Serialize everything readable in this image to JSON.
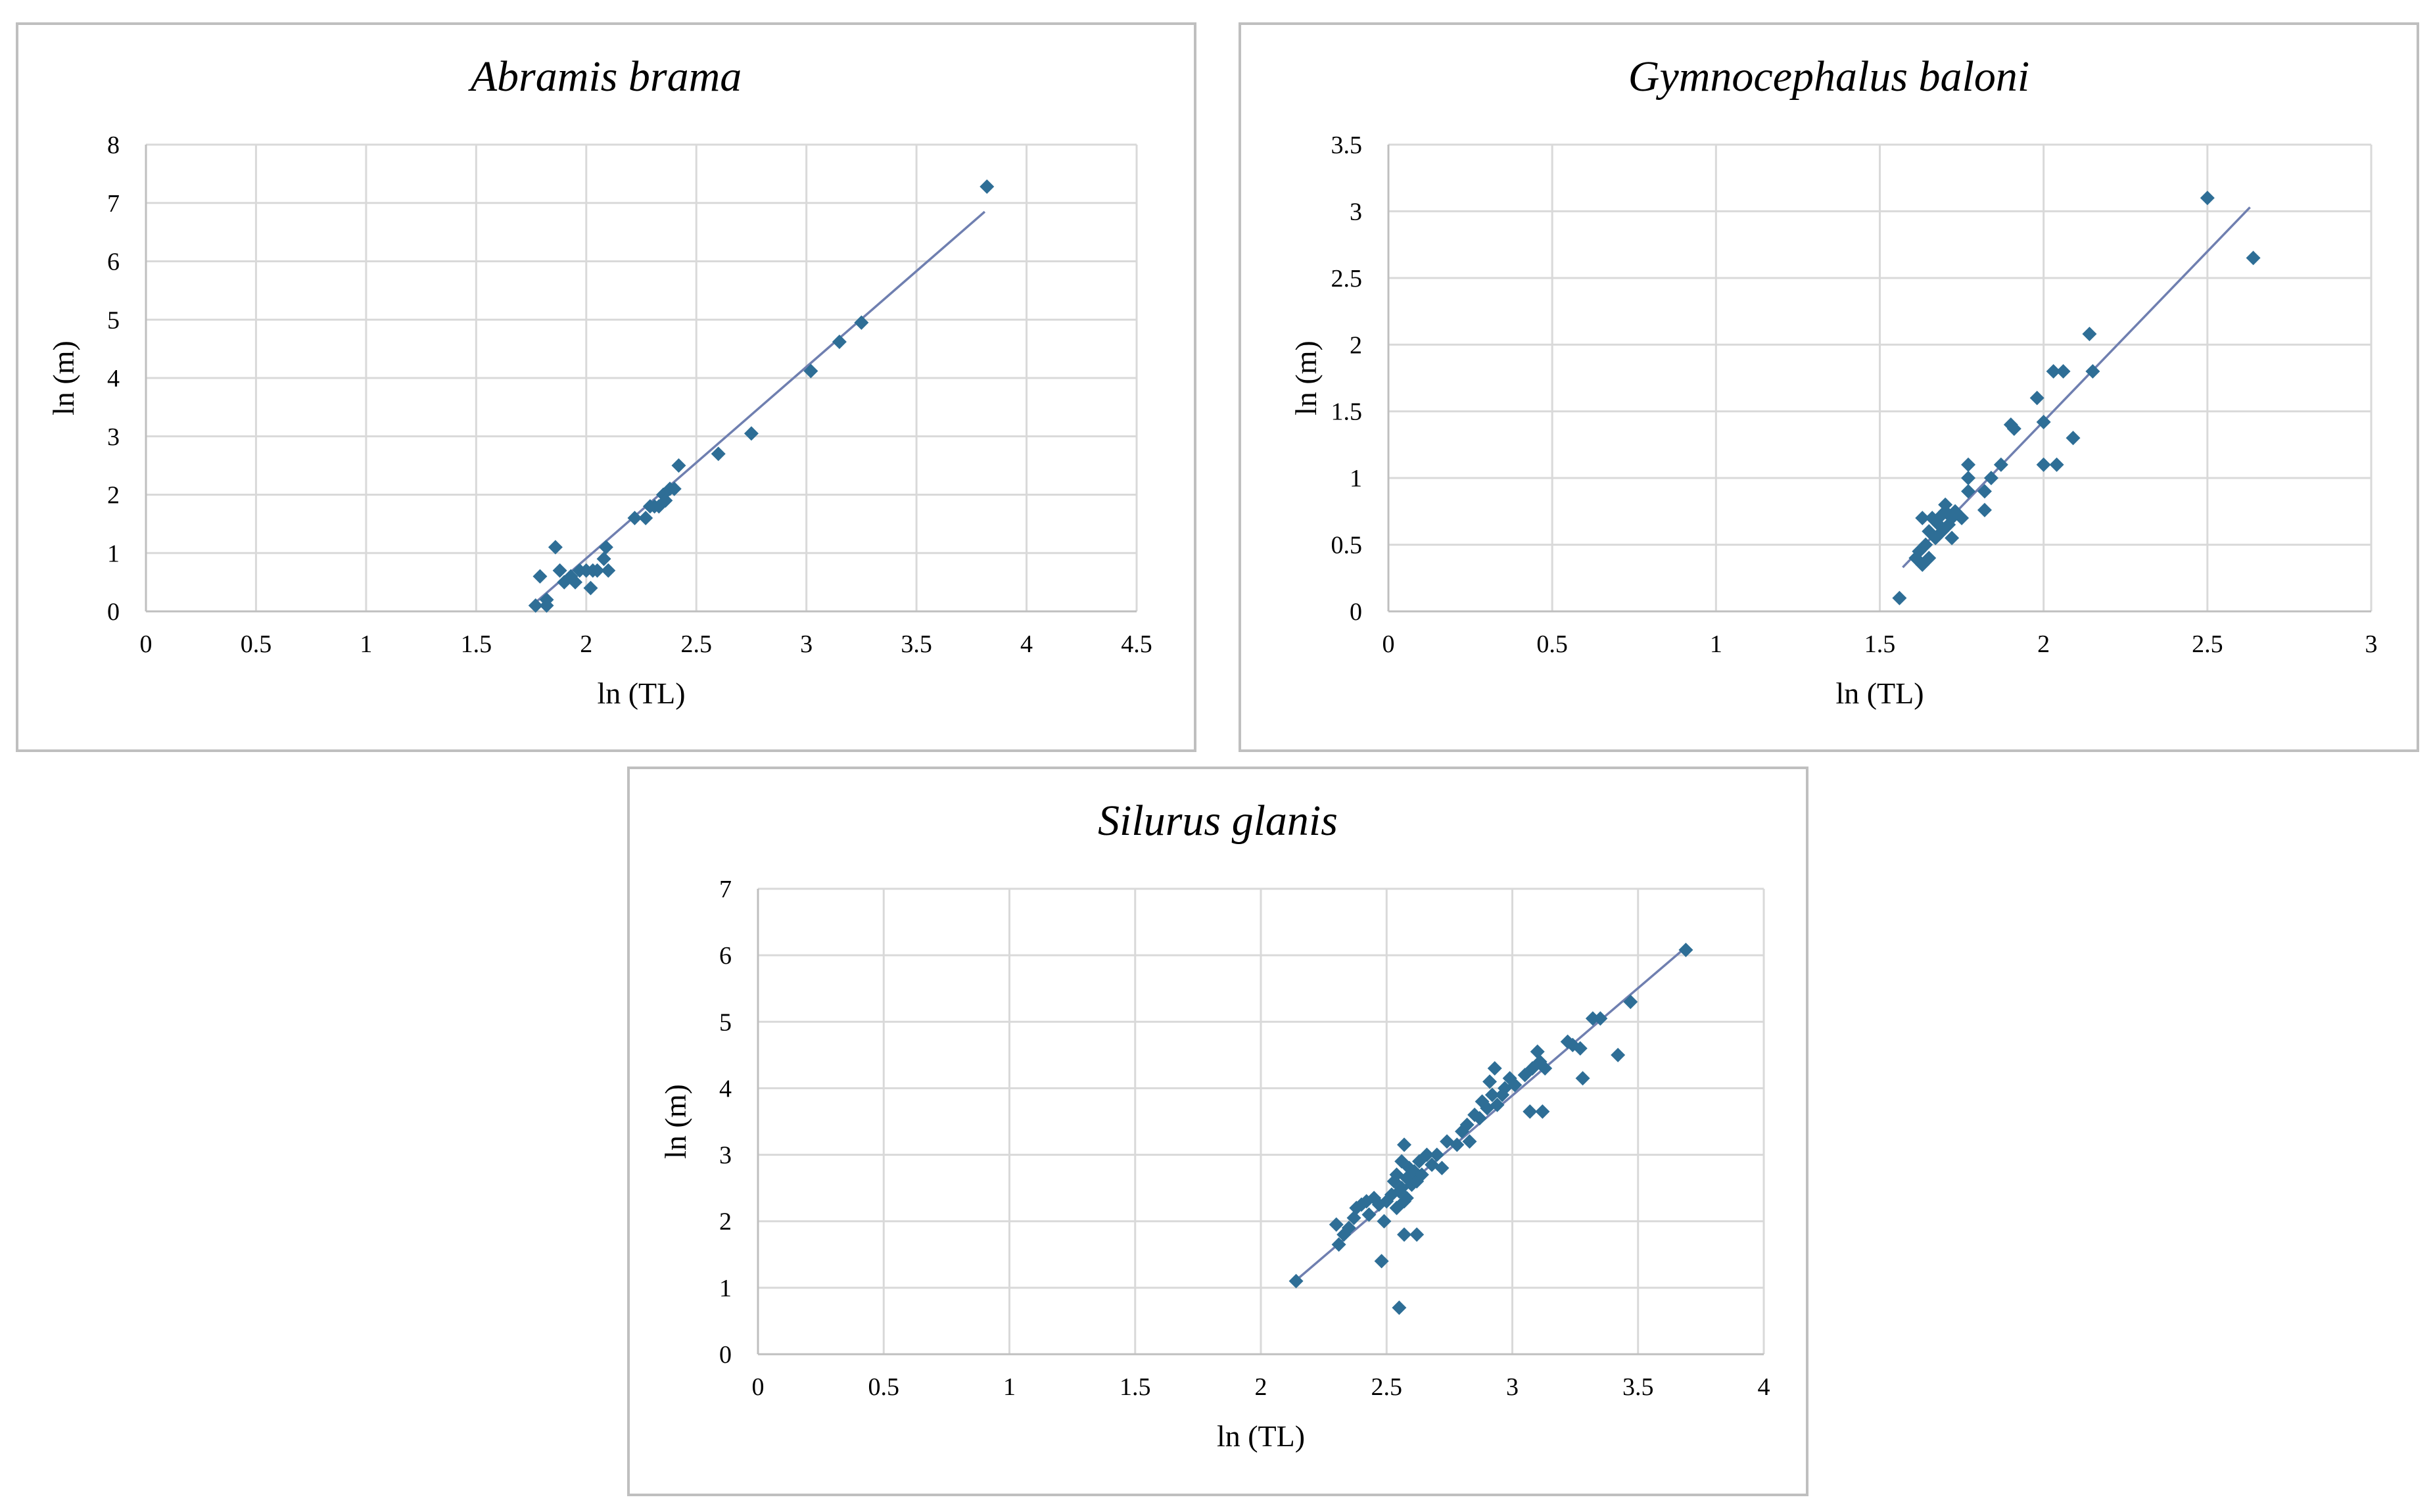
{
  "chart_data": [
    {
      "type": "scatter",
      "title": "Abramis brama",
      "xlabel": "ln (TL)",
      "ylabel": "ln (m)",
      "xlim": [
        0,
        4.5
      ],
      "ylim": [
        0,
        8
      ],
      "x_ticks": [
        "0",
        "0.5",
        "1",
        "1.5",
        "2",
        "2.5",
        "3",
        "3.5",
        "4",
        "4.5"
      ],
      "y_ticks": [
        "0",
        "1",
        "2",
        "3",
        "4",
        "5",
        "6",
        "7",
        "8"
      ],
      "grid": true,
      "legend": "none",
      "point_color": "#2e6e96",
      "trendline_color": "#6f7fb0",
      "trendline": [
        [
          1.76,
          0.12
        ],
        [
          3.81,
          6.85
        ]
      ],
      "points": [
        [
          1.77,
          0.1
        ],
        [
          1.79,
          0.6
        ],
        [
          1.82,
          0.2
        ],
        [
          1.82,
          0.1
        ],
        [
          1.86,
          1.1
        ],
        [
          1.88,
          0.7
        ],
        [
          1.9,
          0.5
        ],
        [
          1.93,
          0.6
        ],
        [
          1.95,
          0.5
        ],
        [
          1.97,
          0.7
        ],
        [
          2.0,
          0.7
        ],
        [
          2.02,
          0.4
        ],
        [
          2.03,
          0.7
        ],
        [
          2.05,
          0.7
        ],
        [
          2.08,
          0.9
        ],
        [
          2.09,
          1.1
        ],
        [
          2.1,
          0.7
        ],
        [
          2.22,
          1.6
        ],
        [
          2.27,
          1.6
        ],
        [
          2.29,
          1.8
        ],
        [
          2.31,
          1.8
        ],
        [
          2.33,
          1.8
        ],
        [
          2.35,
          2.0
        ],
        [
          2.36,
          1.9
        ],
        [
          2.38,
          2.1
        ],
        [
          2.4,
          2.1
        ],
        [
          2.42,
          2.5
        ],
        [
          2.6,
          2.7
        ],
        [
          2.75,
          3.05
        ],
        [
          3.02,
          4.12
        ],
        [
          3.15,
          4.62
        ],
        [
          3.25,
          4.95
        ],
        [
          3.82,
          7.28
        ]
      ]
    },
    {
      "type": "scatter",
      "title": "Gymnocephalus baloni",
      "xlabel": "ln (TL)",
      "ylabel": "ln (m)",
      "xlim": [
        0,
        3
      ],
      "ylim": [
        0,
        3.5
      ],
      "x_ticks": [
        "0",
        "0.5",
        "1",
        "1.5",
        "2",
        "2.5",
        "3"
      ],
      "y_ticks": [
        "0",
        "0.5",
        "1",
        "1.5",
        "2",
        "2.5",
        "3",
        "3.5"
      ],
      "grid": true,
      "legend": "none",
      "point_color": "#2e6e96",
      "trendline_color": "#6f7fb0",
      "trendline": [
        [
          1.57,
          0.33
        ],
        [
          2.63,
          3.03
        ]
      ],
      "points": [
        [
          1.56,
          0.1
        ],
        [
          1.61,
          0.4
        ],
        [
          1.62,
          0.45
        ],
        [
          1.63,
          0.35
        ],
        [
          1.63,
          0.7
        ],
        [
          1.64,
          0.5
        ],
        [
          1.65,
          0.6
        ],
        [
          1.65,
          0.4
        ],
        [
          1.66,
          0.7
        ],
        [
          1.67,
          0.55
        ],
        [
          1.68,
          0.65
        ],
        [
          1.68,
          0.7
        ],
        [
          1.69,
          0.6
        ],
        [
          1.7,
          0.75
        ],
        [
          1.7,
          0.8
        ],
        [
          1.71,
          0.65
        ],
        [
          1.72,
          0.7
        ],
        [
          1.72,
          0.55
        ],
        [
          1.73,
          0.75
        ],
        [
          1.75,
          0.7
        ],
        [
          1.77,
          0.9
        ],
        [
          1.77,
          1.0
        ],
        [
          1.77,
          1.1
        ],
        [
          1.82,
          0.76
        ],
        [
          1.82,
          0.9
        ],
        [
          1.84,
          1.0
        ],
        [
          1.87,
          1.1
        ],
        [
          1.9,
          1.4
        ],
        [
          1.91,
          1.37
        ],
        [
          1.98,
          1.6
        ],
        [
          2.0,
          1.42
        ],
        [
          2.0,
          1.1
        ],
        [
          2.03,
          1.8
        ],
        [
          2.04,
          1.1
        ],
        [
          2.06,
          1.8
        ],
        [
          2.09,
          1.3
        ],
        [
          2.14,
          2.08
        ],
        [
          2.15,
          1.8
        ],
        [
          2.5,
          3.1
        ],
        [
          2.64,
          2.65
        ]
      ]
    },
    {
      "type": "scatter",
      "title": "Silurus glanis",
      "xlabel": "ln (TL)",
      "ylabel": "ln (m)",
      "xlim": [
        0,
        4
      ],
      "ylim": [
        0,
        7
      ],
      "x_ticks": [
        "0",
        "0.5",
        "1",
        "1.5",
        "2",
        "2.5",
        "3",
        "3.5",
        "4"
      ],
      "y_ticks": [
        "0",
        "1",
        "2",
        "3",
        "4",
        "5",
        "6",
        "7"
      ],
      "grid": true,
      "legend": "none",
      "point_color": "#2e6e96",
      "trendline_color": "#6f7fb0",
      "trendline": [
        [
          2.13,
          1.08
        ],
        [
          3.69,
          6.12
        ]
      ],
      "points": [
        [
          2.14,
          1.1
        ],
        [
          2.3,
          1.95
        ],
        [
          2.31,
          1.65
        ],
        [
          2.33,
          1.8
        ],
        [
          2.35,
          1.9
        ],
        [
          2.37,
          2.05
        ],
        [
          2.38,
          2.2
        ],
        [
          2.4,
          2.25
        ],
        [
          2.42,
          2.3
        ],
        [
          2.43,
          2.1
        ],
        [
          2.45,
          2.35
        ],
        [
          2.47,
          2.25
        ],
        [
          2.48,
          1.4
        ],
        [
          2.49,
          2.0
        ],
        [
          2.5,
          2.3
        ],
        [
          2.52,
          2.4
        ],
        [
          2.53,
          2.6
        ],
        [
          2.54,
          2.7
        ],
        [
          2.54,
          2.2
        ],
        [
          2.55,
          0.7
        ],
        [
          2.55,
          2.45
        ],
        [
          2.56,
          2.9
        ],
        [
          2.56,
          2.5
        ],
        [
          2.57,
          3.15
        ],
        [
          2.57,
          2.3
        ],
        [
          2.57,
          1.8
        ],
        [
          2.58,
          2.65
        ],
        [
          2.58,
          2.35
        ],
        [
          2.59,
          2.8
        ],
        [
          2.6,
          2.55
        ],
        [
          2.61,
          2.75
        ],
        [
          2.62,
          1.8
        ],
        [
          2.62,
          2.6
        ],
        [
          2.63,
          2.9
        ],
        [
          2.64,
          2.7
        ],
        [
          2.66,
          3.0
        ],
        [
          2.68,
          2.85
        ],
        [
          2.7,
          3.0
        ],
        [
          2.72,
          2.8
        ],
        [
          2.74,
          3.2
        ],
        [
          2.78,
          3.15
        ],
        [
          2.8,
          3.35
        ],
        [
          2.82,
          3.45
        ],
        [
          2.83,
          3.2
        ],
        [
          2.85,
          3.6
        ],
        [
          2.87,
          3.55
        ],
        [
          2.88,
          3.8
        ],
        [
          2.9,
          3.7
        ],
        [
          2.91,
          4.1
        ],
        [
          2.92,
          3.9
        ],
        [
          2.93,
          4.3
        ],
        [
          2.94,
          3.75
        ],
        [
          2.96,
          3.9
        ],
        [
          2.97,
          4.0
        ],
        [
          2.99,
          4.15
        ],
        [
          3.01,
          4.05
        ],
        [
          3.05,
          4.2
        ],
        [
          3.07,
          3.65
        ],
        [
          3.08,
          4.3
        ],
        [
          3.1,
          4.55
        ],
        [
          3.11,
          4.4
        ],
        [
          3.12,
          3.65
        ],
        [
          3.13,
          4.3
        ],
        [
          3.22,
          4.7
        ],
        [
          3.24,
          4.65
        ],
        [
          3.27,
          4.6
        ],
        [
          3.28,
          4.15
        ],
        [
          3.32,
          5.05
        ],
        [
          3.35,
          5.05
        ],
        [
          3.42,
          4.5
        ],
        [
          3.47,
          5.3
        ],
        [
          3.69,
          6.08
        ]
      ]
    }
  ]
}
